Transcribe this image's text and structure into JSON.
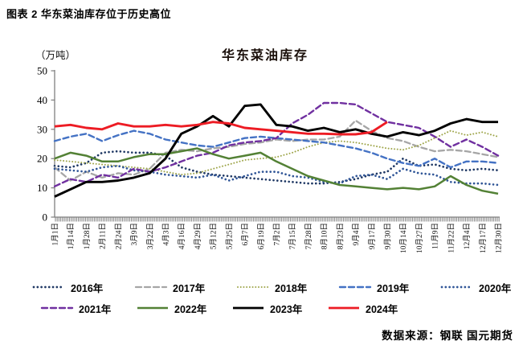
{
  "page": {
    "heading": "图表 2 华东菜油库存位于历史高位",
    "source_note": "数据来源：钢联 国元期货"
  },
  "chart_data": {
    "type": "line",
    "title": "华东菜油库存",
    "unit_label": "（万吨）",
    "ylim": [
      0,
      50
    ],
    "yticks": [
      0,
      10,
      20,
      30,
      40,
      50
    ],
    "grid": false,
    "legend_position": "bottom",
    "legend_rows": [
      5,
      4
    ],
    "categories": [
      "1月1日",
      "1月14日",
      "1月28日",
      "2月11日",
      "2月24日",
      "3月9日",
      "3月22日",
      "4月3日",
      "4月16日",
      "4月29日",
      "5月12日",
      "5月25日",
      "6月7日",
      "6月19日",
      "7月2日",
      "7月15日",
      "7月28日",
      "8月10日",
      "8月23日",
      "9月4日",
      "9月17日",
      "9月30日",
      "10月14日",
      "10月27日",
      "11月9日",
      "11月22日",
      "12月4日",
      "12月17日",
      "12月30日"
    ],
    "series": [
      {
        "name": "2016年",
        "color": "#1f3864",
        "style": "dots-large",
        "width": 2.7,
        "values": [
          17.5,
          17,
          18.5,
          22,
          22.5,
          22,
          22,
          21,
          17,
          15.5,
          14.5,
          14,
          13.5,
          13,
          12.5,
          12,
          11.5,
          11.5,
          12,
          13,
          14.5,
          15.5,
          20,
          17.5,
          18,
          16.5,
          16,
          16.5,
          16
        ]
      },
      {
        "name": "2017年",
        "color": "#a6a6a6",
        "style": "dash",
        "width": 2.3,
        "values": [
          17,
          12.5,
          15.5,
          13.5,
          15,
          14.5,
          16.5,
          22,
          23,
          22.5,
          23.5,
          24,
          25,
          25.5,
          26.5,
          26,
          26.5,
          26.5,
          27.5,
          33,
          29.5,
          27,
          26,
          24,
          22.5,
          23,
          22.5,
          21.5,
          20.5
        ]
      },
      {
        "name": "2018年",
        "color": "#9ea54a",
        "style": "dots-small",
        "width": 2,
        "values": [
          19.5,
          19,
          18.5,
          18,
          17.5,
          17,
          16.5,
          15.5,
          14.5,
          15,
          16.5,
          18,
          19.5,
          20,
          20.5,
          22,
          24,
          25.5,
          26,
          25.5,
          24.5,
          23.5,
          23,
          24.5,
          27,
          29.5,
          28,
          29,
          27.5
        ]
      },
      {
        "name": "2019年",
        "color": "#4472c4",
        "style": "dash",
        "width": 2.4,
        "values": [
          26,
          27.5,
          28.5,
          26,
          28,
          29.5,
          28.5,
          26.5,
          25.5,
          24.5,
          24,
          25.5,
          27,
          27.5,
          27,
          26.5,
          26,
          25.5,
          24.5,
          23.5,
          22,
          20,
          18.5,
          17.5,
          20,
          17,
          19,
          19,
          18.5
        ]
      },
      {
        "name": "2020年",
        "color": "#2f5597",
        "style": "dots-large",
        "width": 2.7,
        "values": [
          16.5,
          16,
          15.5,
          17,
          17.5,
          16,
          15.5,
          14.5,
          14,
          13.5,
          14.5,
          12.5,
          14,
          15.5,
          15.5,
          14,
          13.5,
          12,
          11.5,
          14,
          14.5,
          13,
          16.5,
          15,
          14.5,
          12,
          11.5,
          11.5,
          11
        ]
      },
      {
        "name": "2021年",
        "color": "#7030a0",
        "style": "dash",
        "width": 2.4,
        "values": [
          10.5,
          13,
          12,
          14.5,
          13.5,
          16.5,
          15.5,
          17,
          19,
          21,
          22,
          24.5,
          25.5,
          26,
          27,
          32,
          35,
          39,
          39,
          38.5,
          35.5,
          32.5,
          31.5,
          30.5,
          27.5,
          24,
          26.5,
          24,
          21
        ]
      },
      {
        "name": "2022年",
        "color": "#538135",
        "style": "solid",
        "width": 2.5,
        "values": [
          20,
          22,
          21,
          19,
          19,
          20.5,
          21.5,
          21.5,
          22.5,
          23.5,
          21.5,
          20,
          21,
          22,
          19,
          16.5,
          14,
          12.5,
          11,
          10.5,
          10,
          9.5,
          10,
          9.5,
          10.5,
          14,
          11,
          9,
          8
        ]
      },
      {
        "name": "2023年",
        "color": "#000000",
        "style": "solid",
        "width": 2.9,
        "values": [
          7,
          9.5,
          12,
          12,
          12.5,
          13.5,
          15,
          20,
          28.5,
          31,
          34.5,
          31,
          38,
          38.5,
          31.5,
          31,
          29.5,
          30.5,
          29,
          30,
          28.5,
          27.5,
          29,
          28,
          29.5,
          32,
          33.5,
          32.5,
          32.5
        ]
      },
      {
        "name": "2024年",
        "color": "#ed1c24",
        "style": "solid",
        "width": 2.9,
        "values": [
          31,
          31.5,
          30.5,
          30,
          32,
          31,
          31,
          31.5,
          31,
          31.5,
          32.5,
          32,
          30.5,
          30,
          29.5,
          29,
          28.5,
          28.5,
          28.3,
          28.3,
          29,
          32.5,
          null,
          null,
          null,
          null,
          null,
          null,
          null
        ]
      }
    ]
  }
}
